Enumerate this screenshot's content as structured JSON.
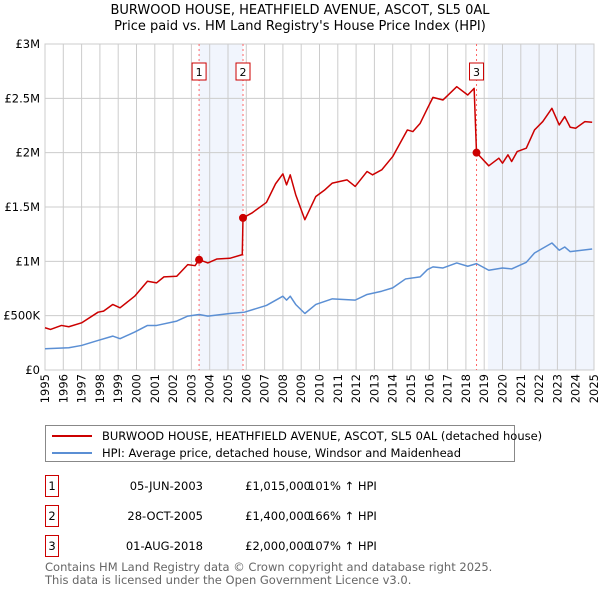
{
  "chart_data": {
    "type": "line",
    "title": "BURWOOD HOUSE, HEATHFIELD AVENUE, ASCOT, SL5 0AL",
    "subtitle": "Price paid vs. HM Land Registry's House Price Index (HPI)",
    "xlabel": "",
    "ylabel": "",
    "xlim": [
      1995,
      2025
    ],
    "ylim": [
      0,
      3000000
    ],
    "grid": true,
    "x_ticks": [
      "1995",
      "1996",
      "1997",
      "1998",
      "1999",
      "2000",
      "2001",
      "2002",
      "2003",
      "2004",
      "2005",
      "2006",
      "2007",
      "2008",
      "2009",
      "2010",
      "2011",
      "2012",
      "2013",
      "2014",
      "2015",
      "2016",
      "2017",
      "2018",
      "2019",
      "2020",
      "2021",
      "2022",
      "2023",
      "2024",
      "2025"
    ],
    "y_ticks": [
      {
        "v": 0,
        "label": "£0"
      },
      {
        "v": 500000,
        "label": "£500K"
      },
      {
        "v": 1000000,
        "label": "£1M"
      },
      {
        "v": 1500000,
        "label": "£1.5M"
      },
      {
        "v": 2000000,
        "label": "£2M"
      },
      {
        "v": 2500000,
        "label": "£2.5M"
      },
      {
        "v": 3000000,
        "label": "£3M"
      }
    ],
    "shaded_ranges": [
      [
        2003.42,
        2005.82
      ],
      [
        2019.2,
        2025
      ]
    ],
    "series": [
      {
        "name": "BURWOOD HOUSE, HEATHFIELD AVENUE, ASCOT, SL5 0AL (detached house)",
        "color": "#cc0000",
        "points": [
          [
            1995.0,
            389
          ],
          [
            1995.3,
            373
          ],
          [
            1995.9,
            410
          ],
          [
            1996.3,
            398
          ],
          [
            1997.0,
            434
          ],
          [
            1997.9,
            532
          ],
          [
            1998.2,
            542
          ],
          [
            1998.7,
            603
          ],
          [
            1999.1,
            572
          ],
          [
            1999.9,
            679
          ],
          [
            2000.6,
            817
          ],
          [
            2001.1,
            802
          ],
          [
            2001.5,
            857
          ],
          [
            2002.2,
            863
          ],
          [
            2002.8,
            970
          ],
          [
            2003.2,
            960
          ],
          [
            2003.42,
            1015
          ],
          [
            2003.9,
            985
          ],
          [
            2004.4,
            1022
          ],
          [
            2005.1,
            1028
          ],
          [
            2005.78,
            1062
          ],
          [
            2005.82,
            1400
          ],
          [
            2006.3,
            1444
          ],
          [
            2007.1,
            1542
          ],
          [
            2007.6,
            1714
          ],
          [
            2008.0,
            1805
          ],
          [
            2008.2,
            1704
          ],
          [
            2008.4,
            1796
          ],
          [
            2008.7,
            1613
          ],
          [
            2009.2,
            1383
          ],
          [
            2009.8,
            1597
          ],
          [
            2010.3,
            1659
          ],
          [
            2010.7,
            1720
          ],
          [
            2011.1,
            1735
          ],
          [
            2011.5,
            1750
          ],
          [
            2011.95,
            1689
          ],
          [
            2012.6,
            1827
          ],
          [
            2012.9,
            1796
          ],
          [
            2013.4,
            1842
          ],
          [
            2014.0,
            1964
          ],
          [
            2014.45,
            2102
          ],
          [
            2014.8,
            2209
          ],
          [
            2015.1,
            2194
          ],
          [
            2015.5,
            2270
          ],
          [
            2015.9,
            2408
          ],
          [
            2016.2,
            2509
          ],
          [
            2016.75,
            2485
          ],
          [
            2017.5,
            2607
          ],
          [
            2018.1,
            2531
          ],
          [
            2018.45,
            2592
          ],
          [
            2018.58,
            2000
          ],
          [
            2019.25,
            1879
          ],
          [
            2019.8,
            1949
          ],
          [
            2020.0,
            1903
          ],
          [
            2020.3,
            1980
          ],
          [
            2020.5,
            1919
          ],
          [
            2020.8,
            2010
          ],
          [
            2021.3,
            2041
          ],
          [
            2021.75,
            2209
          ],
          [
            2022.2,
            2286
          ],
          [
            2022.7,
            2408
          ],
          [
            2023.1,
            2255
          ],
          [
            2023.4,
            2332
          ],
          [
            2023.7,
            2234
          ],
          [
            2024.0,
            2225
          ],
          [
            2024.5,
            2286
          ],
          [
            2024.9,
            2280
          ]
        ]
      },
      {
        "name": "HPI: Average price, detached house, Windsor and Maidenhead",
        "color": "#5b8fd4",
        "points": [
          [
            1995.0,
            196
          ],
          [
            1996.3,
            205
          ],
          [
            1997.0,
            226
          ],
          [
            1997.9,
            272
          ],
          [
            1998.7,
            312
          ],
          [
            1999.1,
            288
          ],
          [
            1999.9,
            349
          ],
          [
            2000.6,
            410
          ],
          [
            2001.1,
            410
          ],
          [
            2002.2,
            450
          ],
          [
            2002.8,
            496
          ],
          [
            2003.42,
            511
          ],
          [
            2003.9,
            496
          ],
          [
            2005.1,
            520
          ],
          [
            2005.9,
            532
          ],
          [
            2007.1,
            594
          ],
          [
            2008.0,
            679
          ],
          [
            2008.2,
            643
          ],
          [
            2008.4,
            679
          ],
          [
            2008.7,
            603
          ],
          [
            2009.2,
            520
          ],
          [
            2009.8,
            603
          ],
          [
            2010.7,
            655
          ],
          [
            2011.95,
            643
          ],
          [
            2012.6,
            695
          ],
          [
            2013.4,
            725
          ],
          [
            2014.0,
            756
          ],
          [
            2014.7,
            838
          ],
          [
            2015.5,
            857
          ],
          [
            2015.9,
            924
          ],
          [
            2016.2,
            949
          ],
          [
            2016.75,
            939
          ],
          [
            2017.5,
            985
          ],
          [
            2018.1,
            955
          ],
          [
            2018.58,
            979
          ],
          [
            2019.25,
            918
          ],
          [
            2020.0,
            939
          ],
          [
            2020.5,
            930
          ],
          [
            2021.3,
            991
          ],
          [
            2021.75,
            1077
          ],
          [
            2022.7,
            1169
          ],
          [
            2023.1,
            1102
          ],
          [
            2023.4,
            1132
          ],
          [
            2023.7,
            1089
          ],
          [
            2024.9,
            1114
          ]
        ]
      }
    ],
    "sales": [
      {
        "n": "1",
        "x": 2003.42,
        "price": 1015000,
        "date": "05-JUN-2003",
        "price_label": "£1,015,000",
        "hpi": "101% ↑ HPI"
      },
      {
        "n": "2",
        "x": 2005.82,
        "price": 1400000,
        "date": "28-OCT-2005",
        "price_label": "£1,400,000",
        "hpi": "166% ↑ HPI"
      },
      {
        "n": "3",
        "x": 2018.58,
        "price": 2000000,
        "date": "01-AUG-2018",
        "price_label": "£2,000,000",
        "hpi": "107% ↑ HPI"
      }
    ]
  },
  "footer": [
    "Contains HM Land Registry data © Crown copyright and database right 2025.",
    "This data is licensed under the Open Government Licence v3.0."
  ]
}
